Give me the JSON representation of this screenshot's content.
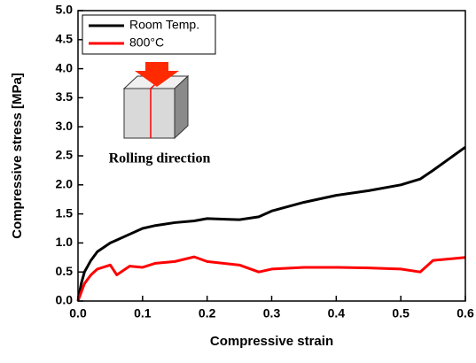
{
  "chart_data": {
    "type": "line",
    "x_label": "Compressive strain",
    "y_label": "Compressive stress [MPa]",
    "annotation": "Rolling direction",
    "x": [
      0,
      0.005,
      0.01,
      0.02,
      0.03,
      0.05,
      0.06,
      0.08,
      0.1,
      0.12,
      0.15,
      0.18,
      0.2,
      0.25,
      0.28,
      0.3,
      0.35,
      0.4,
      0.45,
      0.5,
      0.53,
      0.55,
      0.6
    ],
    "series": [
      {
        "name": "Room Temp.",
        "color": "#000000",
        "values": [
          0,
          0.3,
          0.5,
          0.7,
          0.85,
          1.0,
          1.05,
          1.15,
          1.25,
          1.3,
          1.35,
          1.38,
          1.42,
          1.4,
          1.45,
          1.55,
          1.7,
          1.82,
          1.9,
          2.0,
          2.1,
          2.25,
          2.65
        ]
      },
      {
        "name": "800°C",
        "color": "#ff0000",
        "values": [
          0,
          0.15,
          0.3,
          0.45,
          0.55,
          0.62,
          0.45,
          0.6,
          0.58,
          0.65,
          0.68,
          0.76,
          0.68,
          0.62,
          0.5,
          0.55,
          0.58,
          0.58,
          0.57,
          0.55,
          0.5,
          0.7,
          0.75
        ]
      }
    ],
    "xlim": [
      0,
      0.6
    ],
    "ylim": [
      0,
      5
    ],
    "xticks": [
      {
        "value": 0,
        "label": "0.0"
      },
      0.1,
      0.2,
      0.3,
      0.4,
      0.5,
      0.6
    ],
    "yticks": [
      {
        "value": 0,
        "label": "0.0"
      },
      0.5,
      {
        "value": 1,
        "label": "1.0"
      },
      1.5,
      {
        "value": 2,
        "label": "2.0"
      },
      2.5,
      {
        "value": 3,
        "label": "3.0"
      },
      3.5,
      {
        "value": 4,
        "label": "4.0"
      },
      4.5,
      {
        "value": 5,
        "label": "5.0"
      }
    ],
    "legend": "upper left"
  }
}
